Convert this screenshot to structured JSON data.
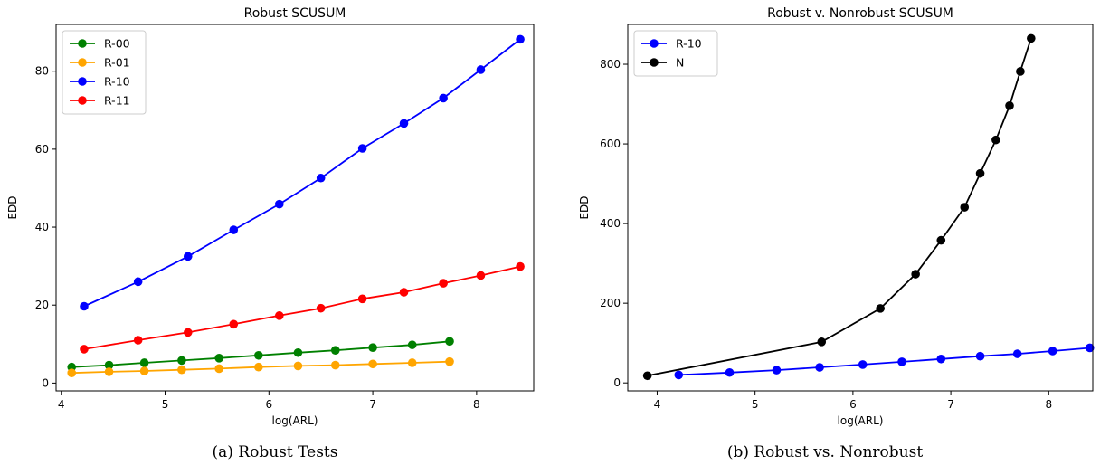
{
  "chart_data": [
    {
      "type": "line",
      "title": "Robust SCUSUM",
      "xlabel": "log(ARL)",
      "ylabel": "EDD",
      "xlim": [
        3.95,
        8.55
      ],
      "ylim": [
        -2,
        92
      ],
      "xticks": [
        4,
        5,
        6,
        7,
        8
      ],
      "yticks": [
        0,
        20,
        40,
        60,
        80
      ],
      "legend": "top-left",
      "grid": false,
      "caption": "(a) Robust Tests",
      "series": [
        {
          "name": "R-00",
          "color": "#008000",
          "x": [
            4.1,
            4.46,
            4.8,
            5.16,
            5.52,
            5.9,
            6.28,
            6.64,
            7.0,
            7.38,
            7.74
          ],
          "y": [
            4.1,
            4.6,
            5.2,
            5.8,
            6.4,
            7.1,
            7.8,
            8.4,
            9.1,
            9.8,
            10.7
          ]
        },
        {
          "name": "R-01",
          "color": "#ffa500",
          "x": [
            4.1,
            4.46,
            4.8,
            5.16,
            5.52,
            5.9,
            6.28,
            6.64,
            7.0,
            7.38,
            7.74
          ],
          "y": [
            2.6,
            2.9,
            3.1,
            3.4,
            3.7,
            4.1,
            4.4,
            4.6,
            4.9,
            5.2,
            5.5
          ]
        },
        {
          "name": "R-10",
          "color": "#0000ff",
          "x": [
            4.22,
            4.74,
            5.22,
            5.66,
            6.1,
            6.5,
            6.9,
            7.3,
            7.68,
            8.04,
            8.42
          ],
          "y": [
            19.7,
            26.0,
            32.5,
            39.3,
            45.9,
            52.6,
            60.2,
            66.6,
            73.1,
            80.4,
            88.2
          ]
        },
        {
          "name": "R-11",
          "color": "#ff0000",
          "x": [
            4.22,
            4.74,
            5.22,
            5.66,
            6.1,
            6.5,
            6.9,
            7.3,
            7.68,
            8.04,
            8.42
          ],
          "y": [
            8.7,
            11.0,
            13.0,
            15.1,
            17.3,
            19.2,
            21.6,
            23.3,
            25.6,
            27.6,
            29.9
          ]
        }
      ]
    },
    {
      "type": "line",
      "title": "Robust v. Nonrobust SCUSUM",
      "xlabel": "log(ARL)",
      "ylabel": "EDD",
      "xlim": [
        3.7,
        8.45
      ],
      "ylim": [
        -20,
        900
      ],
      "xticks": [
        4,
        5,
        6,
        7,
        8
      ],
      "yticks": [
        0,
        200,
        400,
        600,
        800
      ],
      "legend": "top-left",
      "grid": false,
      "caption": "(b) Robust vs. Nonrobust",
      "series": [
        {
          "name": "R-10",
          "color": "#0000ff",
          "x": [
            4.22,
            4.74,
            5.22,
            5.66,
            6.1,
            6.5,
            6.9,
            7.3,
            7.68,
            8.04,
            8.42
          ],
          "y": [
            20,
            26,
            32,
            39,
            46,
            53,
            60,
            67,
            73,
            80,
            88
          ]
        },
        {
          "name": "N",
          "color": "#000000",
          "x": [
            3.9,
            5.68,
            6.28,
            6.64,
            6.9,
            7.14,
            7.3,
            7.46,
            7.6,
            7.71,
            7.82
          ],
          "y": [
            18,
            103,
            187,
            273,
            358,
            441,
            526,
            610,
            696,
            782,
            865
          ]
        }
      ]
    }
  ]
}
